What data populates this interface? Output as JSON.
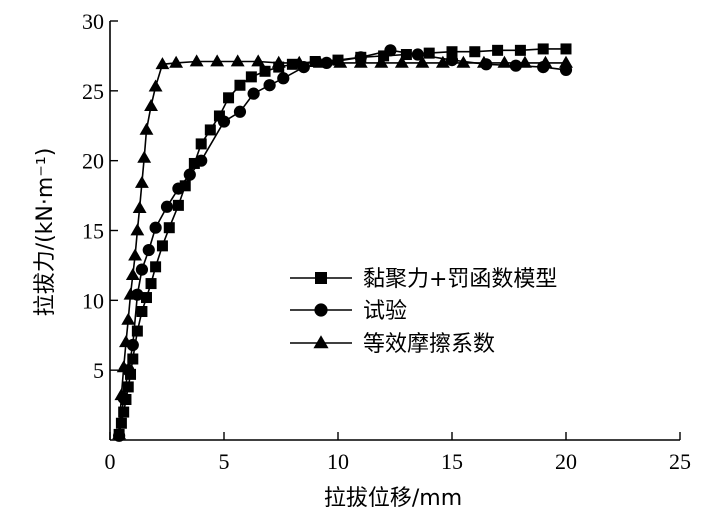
{
  "chart_data": {
    "type": "line",
    "title": "",
    "xlabel": "拉拔位移/mm",
    "ylabel": "拉拔力/(kN·m⁻¹)",
    "xlim": [
      0,
      25
    ],
    "ylim": [
      0,
      30
    ],
    "xticks": [
      0,
      5,
      10,
      15,
      20,
      25
    ],
    "yticks": [
      5,
      10,
      15,
      20,
      25,
      30
    ],
    "grid": false,
    "legend_position": "center-right",
    "series": [
      {
        "name": "黏聚力+罚函数模型",
        "marker": "square",
        "x": [
          0.4,
          0.5,
          0.6,
          0.7,
          0.8,
          0.9,
          1.0,
          1.2,
          1.4,
          1.6,
          1.8,
          2.0,
          2.3,
          2.6,
          3.0,
          3.3,
          3.7,
          4.0,
          4.4,
          4.8,
          5.2,
          5.7,
          6.2,
          6.8,
          7.4,
          8.0,
          9.0,
          10.0,
          11.0,
          12.0,
          13.0,
          14.0,
          15.0,
          16.0,
          17.0,
          18.0,
          19.0,
          20.0
        ],
        "y": [
          0.4,
          1.2,
          2.0,
          2.9,
          3.8,
          4.7,
          5.8,
          7.8,
          9.2,
          10.2,
          11.2,
          12.4,
          13.9,
          15.2,
          16.8,
          18.2,
          19.8,
          21.2,
          22.2,
          23.2,
          24.5,
          25.4,
          26.0,
          26.4,
          26.7,
          26.9,
          27.1,
          27.2,
          27.4,
          27.5,
          27.6,
          27.7,
          27.8,
          27.8,
          27.9,
          27.9,
          28.0,
          28.0
        ]
      },
      {
        "name": "试验",
        "marker": "circle",
        "x": [
          0.4,
          0.6,
          0.8,
          1.0,
          1.2,
          1.4,
          1.7,
          2.0,
          2.5,
          3.0,
          3.5,
          4.0,
          5.0,
          5.7,
          6.3,
          7.0,
          7.6,
          8.5,
          9.5,
          11.0,
          12.3,
          13.5,
          15.0,
          16.5,
          17.8,
          19.0,
          20.0
        ],
        "y": [
          0.3,
          3.0,
          5.0,
          6.8,
          10.4,
          12.2,
          13.6,
          15.2,
          16.7,
          18.0,
          19.0,
          20.0,
          22.8,
          23.5,
          24.8,
          25.4,
          25.9,
          26.7,
          27.0,
          27.4,
          27.9,
          27.6,
          27.2,
          26.9,
          26.8,
          26.7,
          26.5
        ]
      },
      {
        "name": "等效摩擦系数",
        "marker": "triangle",
        "x": [
          0.4,
          0.5,
          0.6,
          0.7,
          0.8,
          0.9,
          1.0,
          1.1,
          1.2,
          1.3,
          1.4,
          1.5,
          1.6,
          1.8,
          2.0,
          2.3,
          2.9,
          3.8,
          4.7,
          5.6,
          6.5,
          7.4,
          8.3,
          9.2,
          10.1,
          11.0,
          11.9,
          12.8,
          13.7,
          14.6,
          15.5,
          16.4,
          17.3,
          18.2,
          19.1,
          20.0
        ],
        "y": [
          0.4,
          3.2,
          5.2,
          7.0,
          8.6,
          10.4,
          11.8,
          13.2,
          15.0,
          16.6,
          18.4,
          20.2,
          22.2,
          23.9,
          25.3,
          26.9,
          27.0,
          27.1,
          27.1,
          27.1,
          27.1,
          27.0,
          27.0,
          27.0,
          27.0,
          27.0,
          27.0,
          27.0,
          27.0,
          27.0,
          27.0,
          27.0,
          27.0,
          27.0,
          27.0,
          27.0
        ]
      }
    ]
  }
}
